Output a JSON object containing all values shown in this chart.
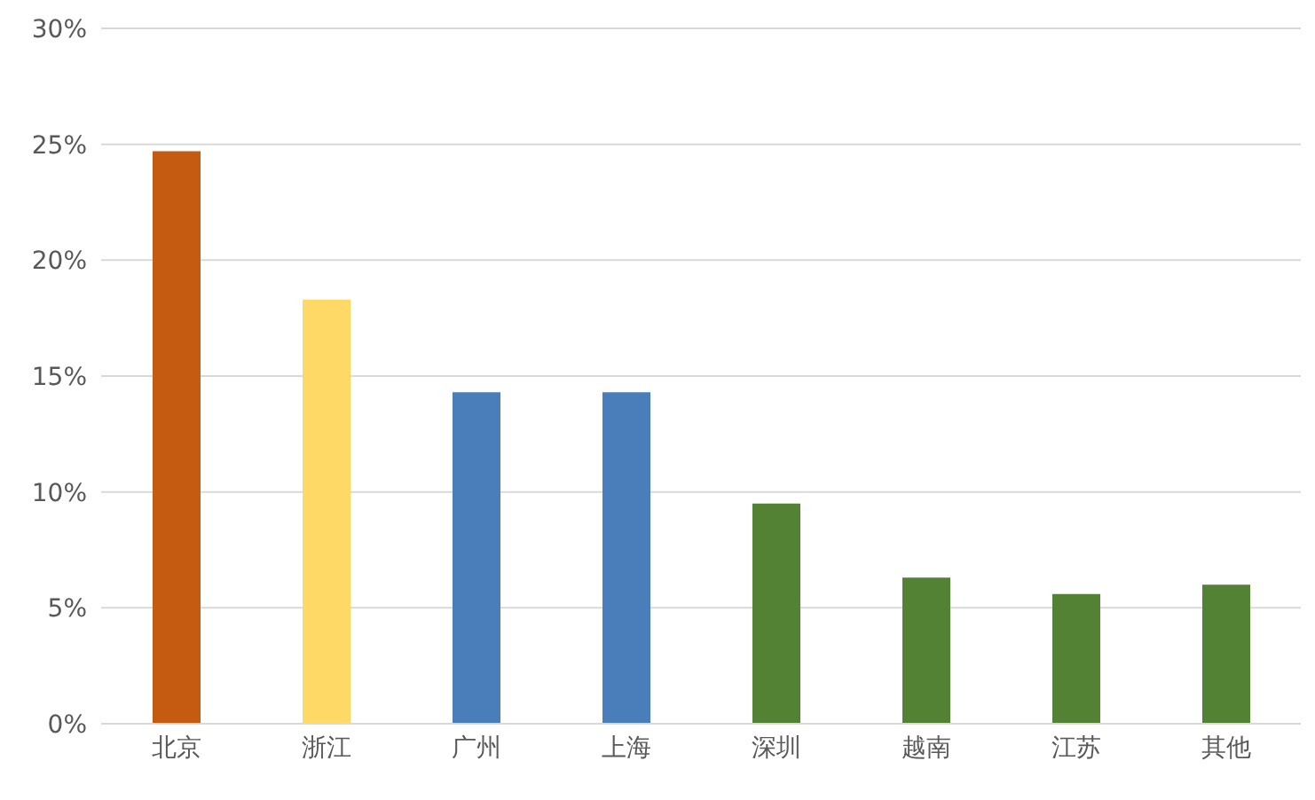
{
  "chart_data": {
    "type": "bar",
    "categories": [
      "北京",
      "浙江",
      "广州",
      "上海",
      "深圳",
      "越南",
      "江苏",
      "其他"
    ],
    "values": [
      24.7,
      18.3,
      14.3,
      14.3,
      9.5,
      6.3,
      5.6,
      6.0
    ],
    "colors": [
      "#c55a11",
      "#ffd966",
      "#4a7ebb",
      "#4a7ebb",
      "#548235",
      "#548235",
      "#548235",
      "#548235"
    ],
    "ylim": [
      0,
      30
    ],
    "yticks": [
      {
        "value": 0,
        "label": "0%"
      },
      {
        "value": 5,
        "label": "5%"
      },
      {
        "value": 10,
        "label": "10%"
      },
      {
        "value": 15,
        "label": "15%"
      },
      {
        "value": 20,
        "label": "20%"
      },
      {
        "value": 25,
        "label": "25%"
      },
      {
        "value": 30,
        "label": "30%"
      }
    ],
    "grid": "y",
    "legend": false
  }
}
